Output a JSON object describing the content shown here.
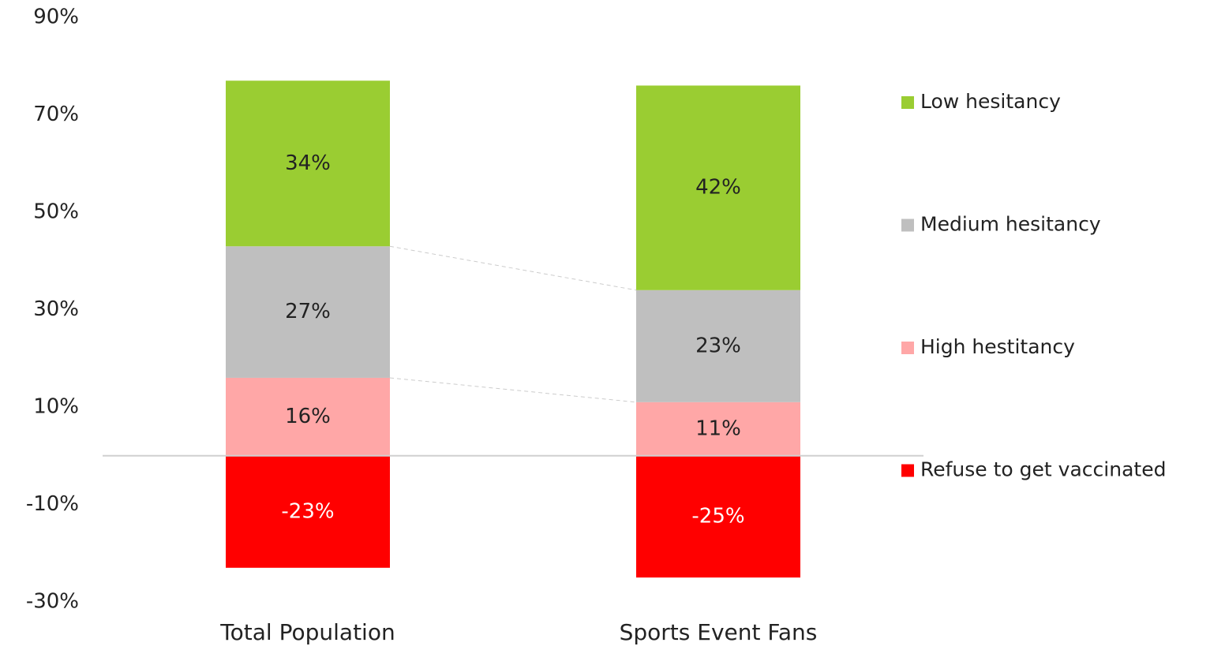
{
  "chart_data": {
    "type": "stacked_bar",
    "categories": [
      "Total Population",
      "Sports Event Fans"
    ],
    "series": [
      {
        "name": "Low hesitancy",
        "color": "#9acd32",
        "values": [
          34,
          42
        ],
        "value_labels": [
          "34%",
          "42%"
        ]
      },
      {
        "name": "Medium hesitancy",
        "color": "#bfbfbf",
        "values": [
          27,
          23
        ],
        "value_labels": [
          "27%",
          "23%"
        ]
      },
      {
        "name": "High hestitancy",
        "color": "#ffa7a7",
        "values": [
          16,
          11
        ],
        "value_labels": [
          "16%",
          "11%"
        ]
      },
      {
        "name": "Refuse to get vaccinated",
        "color": "#ff0000",
        "values": [
          -23,
          -25
        ],
        "value_labels": [
          "-23%",
          "-25%"
        ]
      }
    ],
    "ylim": [
      -30,
      90
    ],
    "yticks": [
      {
        "value": 90,
        "label": "90%"
      },
      {
        "value": 70,
        "label": "70%"
      },
      {
        "value": 50,
        "label": "50%"
      },
      {
        "value": 30,
        "label": "30%"
      },
      {
        "value": 10,
        "label": "10%"
      },
      {
        "value": -10,
        "label": "-10%"
      },
      {
        "value": -30,
        "label": "-30%"
      }
    ],
    "legend": "right"
  }
}
